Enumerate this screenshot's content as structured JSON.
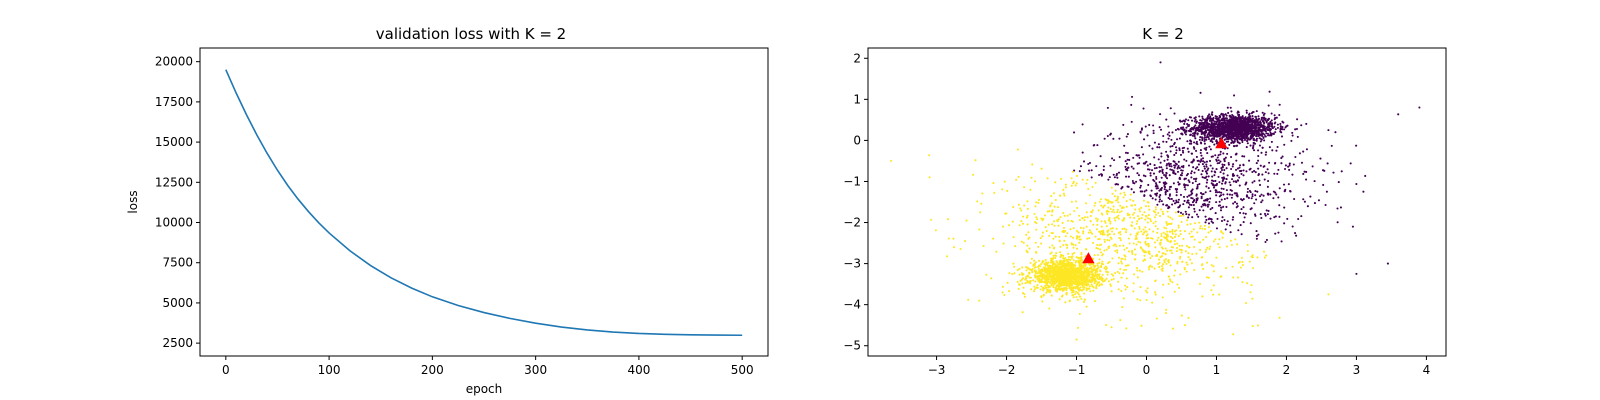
{
  "chart_data": [
    {
      "type": "line",
      "title": "validation loss with K = 2",
      "xlabel": "epoch",
      "ylabel": "loss",
      "xlim": [
        -25,
        525
      ],
      "ylim": [
        1700,
        20850
      ],
      "xticks": [
        0,
        100,
        200,
        300,
        400,
        500
      ],
      "yticks": [
        2500,
        5000,
        7500,
        10000,
        12500,
        15000,
        17500,
        20000
      ],
      "grid": false,
      "line_color": "#1f77b4",
      "series": [
        {
          "x": [
            0,
            10,
            20,
            30,
            40,
            50,
            60,
            70,
            80,
            90,
            100,
            120,
            140,
            160,
            180,
            200,
            225,
            250,
            275,
            300,
            325,
            350,
            375,
            400,
            425,
            450,
            475,
            500
          ],
          "values": [
            19500,
            18050,
            16700,
            15450,
            14300,
            13250,
            12300,
            11450,
            10680,
            9980,
            9350,
            8250,
            7330,
            6560,
            5920,
            5380,
            4840,
            4400,
            4040,
            3740,
            3500,
            3320,
            3190,
            3100,
            3050,
            3020,
            3000,
            2990
          ]
        }
      ]
    },
    {
      "type": "scatter",
      "title": "K = 2",
      "xlabel": "",
      "ylabel": "",
      "xlim": [
        -3.98,
        4.28
      ],
      "ylim": [
        -5.25,
        2.25
      ],
      "xticks": [
        -3,
        -2,
        -1,
        0,
        1,
        2,
        3,
        4
      ],
      "yticks": [
        -5,
        -4,
        -3,
        -2,
        -1,
        0,
        1,
        2
      ],
      "grid": false,
      "cluster_colors": [
        "#440154",
        "#fde725"
      ],
      "centroid_color": "#ff0000",
      "clusters": [
        {
          "label": 0,
          "dense_center": [
            1.25,
            0.3
          ],
          "dense_spread": [
            0.3,
            0.16
          ],
          "diffuse_center": [
            0.7,
            -1.0
          ],
          "diffuse_spread": [
            0.8,
            0.75
          ]
        },
        {
          "label": 1,
          "dense_center": [
            -1.15,
            -3.3
          ],
          "dense_spread": [
            0.25,
            0.18
          ],
          "diffuse_center": [
            -0.2,
            -2.2
          ],
          "diffuse_spread": [
            0.9,
            0.85
          ]
        }
      ],
      "boundary": {
        "x": [
          -1.4,
          1.5
        ],
        "y": [
          -0.5,
          -2.5
        ]
      },
      "outliers": [
        {
          "x": 3.9,
          "y": 0.8,
          "label": 0
        },
        {
          "x": 0.2,
          "y": 1.9,
          "label": 0
        },
        {
          "x": 3.45,
          "y": -3.0,
          "label": 0
        },
        {
          "x": 3.0,
          "y": -3.25,
          "label": 0
        },
        {
          "x": 2.6,
          "y": 0.25,
          "label": 0
        },
        {
          "x": 2.7,
          "y": 0.2,
          "label": 0
        },
        {
          "x": 2.95,
          "y": -2.1,
          "label": 0
        },
        {
          "x": 3.1,
          "y": -1.25,
          "label": 0
        },
        {
          "x": -3.65,
          "y": -0.5,
          "label": 1
        },
        {
          "x": -3.1,
          "y": -0.9,
          "label": 1
        },
        {
          "x": -2.75,
          "y": -2.6,
          "label": 1
        },
        {
          "x": -1.0,
          "y": -4.85,
          "label": 1
        },
        {
          "x": -0.5,
          "y": -4.55,
          "label": 1
        },
        {
          "x": 0.55,
          "y": -4.5,
          "label": 1
        },
        {
          "x": 2.6,
          "y": -3.75,
          "label": 1
        }
      ],
      "centroids": [
        {
          "x": 1.07,
          "y": -0.08
        },
        {
          "x": -0.83,
          "y": -2.88
        }
      ]
    }
  ]
}
